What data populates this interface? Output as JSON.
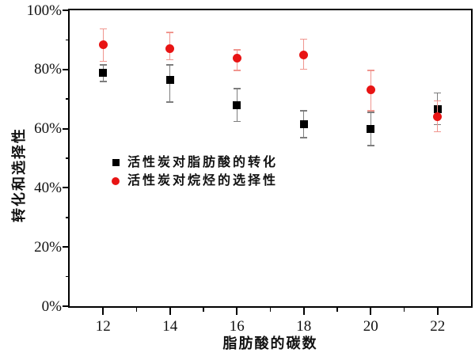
{
  "chart_data": {
    "type": "scatter",
    "title": "",
    "xlabel": "脂肪酸的碳数",
    "ylabel": "转化和选择性",
    "xlim": [
      11,
      23
    ],
    "ylim": [
      0,
      100
    ],
    "grid": false,
    "frame": "full-box",
    "legend_position": "inside-left-middle",
    "background_color": "#ffffff",
    "frame_color": "#000000",
    "x_ticks": [
      12,
      14,
      16,
      18,
      20,
      22
    ],
    "x_tick_labels": [
      "12",
      "14",
      "16",
      "18",
      "20",
      "22"
    ],
    "x_minor_ticks": [
      13,
      15,
      17,
      19,
      21
    ],
    "y_ticks": [
      0,
      20,
      40,
      60,
      80,
      100
    ],
    "y_tick_labels": [
      "0%",
      "20%",
      "40%",
      "60%",
      "80%",
      "100%"
    ],
    "y_minor_ticks": [
      10,
      30,
      50,
      70,
      90
    ],
    "x": [
      12,
      14,
      16,
      18,
      20,
      22
    ],
    "series": [
      {
        "name": "活性炭对脂肪酸的转化",
        "marker": "square",
        "color": "#000000",
        "errorbar_color": "#7d7d7d",
        "values": [
          79.0,
          76.5,
          68.0,
          61.5,
          60.0,
          66.5
        ],
        "error_upper": [
          81.5,
          81.5,
          73.5,
          66.0,
          65.5,
          72.0
        ],
        "error_lower": [
          76.0,
          69.0,
          62.5,
          57.0,
          54.3,
          61.3
        ]
      },
      {
        "name": "活性炭对烷烃的选择性",
        "marker": "circle",
        "color": "#e81414",
        "errorbar_color": "#f0968f",
        "values": [
          88.3,
          87.0,
          83.7,
          85.0,
          73.0,
          64.0
        ],
        "error_upper": [
          93.7,
          92.5,
          86.6,
          90.3,
          79.7,
          69.4
        ],
        "error_lower": [
          82.8,
          83.3,
          79.7,
          80.1,
          66.1,
          59.0
        ]
      }
    ]
  }
}
